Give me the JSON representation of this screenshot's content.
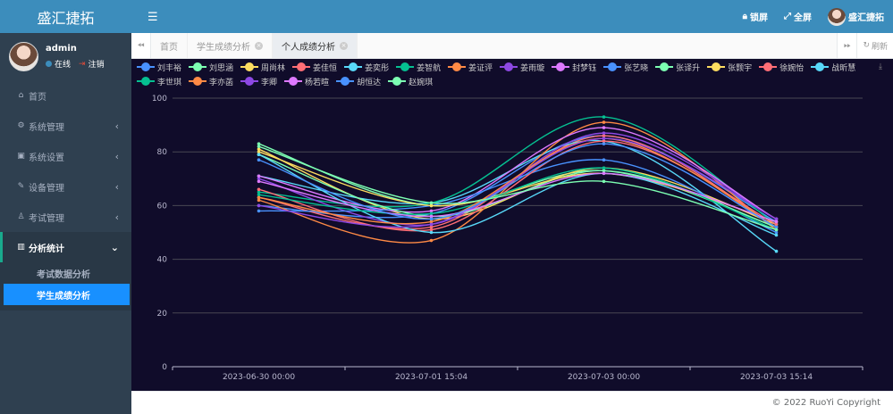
{
  "brand": "盛汇捷拓",
  "user": {
    "name": "admin",
    "status": "在线",
    "logout": "注销"
  },
  "menu": [
    {
      "label": "首页",
      "icon": "home-icon",
      "glyph": "⌂",
      "chev": ""
    },
    {
      "label": "系统管理",
      "icon": "gear-icon",
      "glyph": "⚙",
      "chev": "‹"
    },
    {
      "label": "系统设置",
      "icon": "settings-box-icon",
      "glyph": "▣",
      "chev": "‹"
    },
    {
      "label": "设备管理",
      "icon": "wrench-icon",
      "glyph": "✎",
      "chev": "‹"
    },
    {
      "label": "考试管理",
      "icon": "person-icon",
      "glyph": "♙",
      "chev": "‹"
    }
  ],
  "analysis_menu": {
    "label": "分析统计",
    "chev": "⌄"
  },
  "submenu": [
    "考试数据分析",
    "学生成绩分析"
  ],
  "header": {
    "lock": "锁屏",
    "fullscreen": "全屏",
    "user_name": "盛汇捷拓"
  },
  "tabs": {
    "home": "首页",
    "items": [
      "学生成绩分析",
      "个人成绩分析"
    ],
    "refresh": "刷新"
  },
  "footer": "© 2022 RuoYi Copyright",
  "colors": {
    "accent": "#3c8dbc",
    "sidebar": "#2f4050",
    "active_sub": "#1890ff",
    "chart_bg": "#100c2a"
  },
  "chart_data": {
    "type": "line",
    "categories": [
      "2023-06-30 00:00",
      "2023-07-01 15:04",
      "2023-07-03 00:00",
      "2023-07-03 15:14"
    ],
    "ylim": [
      0,
      100
    ],
    "yticks": [
      0,
      20,
      40,
      60,
      80,
      100
    ],
    "grid": true,
    "legend_position": "top",
    "series": [
      {
        "name": "刘丰裕",
        "color": "#4992ff",
        "values": [
          60,
          57,
          86,
          54
        ]
      },
      {
        "name": "刘思涵",
        "color": "#7cffb2",
        "values": [
          83,
          60,
          73,
          52
        ]
      },
      {
        "name": "周尚林",
        "color": "#fddd60",
        "values": [
          81,
          55,
          74,
          53
        ]
      },
      {
        "name": "姜佳恒",
        "color": "#ff6e76",
        "values": [
          63,
          52,
          86,
          52
        ]
      },
      {
        "name": "姜奕彤",
        "color": "#58d9f9",
        "values": [
          71,
          61,
          84,
          43
        ]
      },
      {
        "name": "姜智航",
        "color": "#05c091",
        "values": [
          65,
          61,
          93,
          53
        ]
      },
      {
        "name": "姜证评",
        "color": "#ff8a45",
        "values": [
          62,
          47,
          91,
          51
        ]
      },
      {
        "name": "姜雨璇",
        "color": "#8d48e3",
        "values": [
          70,
          53,
          87,
          55
        ]
      },
      {
        "name": "封梦钰",
        "color": "#dd79ff",
        "values": [
          71,
          58,
          89,
          55
        ]
      },
      {
        "name": "张艺晓",
        "color": "#4992ff",
        "values": [
          58,
          60,
          77,
          50
        ]
      },
      {
        "name": "张译升",
        "color": "#7cffb2",
        "values": [
          79,
          56,
          73,
          52
        ]
      },
      {
        "name": "张颢宇",
        "color": "#fddd60",
        "values": [
          80,
          60,
          72,
          54
        ]
      },
      {
        "name": "徐婉怡",
        "color": "#ff6e76",
        "values": [
          66,
          51,
          84,
          53
        ]
      },
      {
        "name": "战昕慧",
        "color": "#58d9f9",
        "values": [
          79,
          50,
          72,
          49
        ]
      },
      {
        "name": "李世琪",
        "color": "#05c091",
        "values": [
          64,
          57,
          74,
          51
        ]
      },
      {
        "name": "李亦菡",
        "color": "#ff8a45",
        "values": [
          63,
          54,
          85,
          52
        ]
      },
      {
        "name": "李卿",
        "color": "#8d48e3",
        "values": [
          60,
          53,
          85,
          55
        ]
      },
      {
        "name": "杨若暄",
        "color": "#dd79ff",
        "values": [
          69,
          56,
          72,
          54
        ]
      },
      {
        "name": "胡恒达",
        "color": "#4992ff",
        "values": [
          77,
          55,
          83,
          52
        ]
      },
      {
        "name": "赵婉琪",
        "color": "#7cffb2",
        "values": [
          82,
          61,
          69,
          51
        ]
      }
    ]
  }
}
